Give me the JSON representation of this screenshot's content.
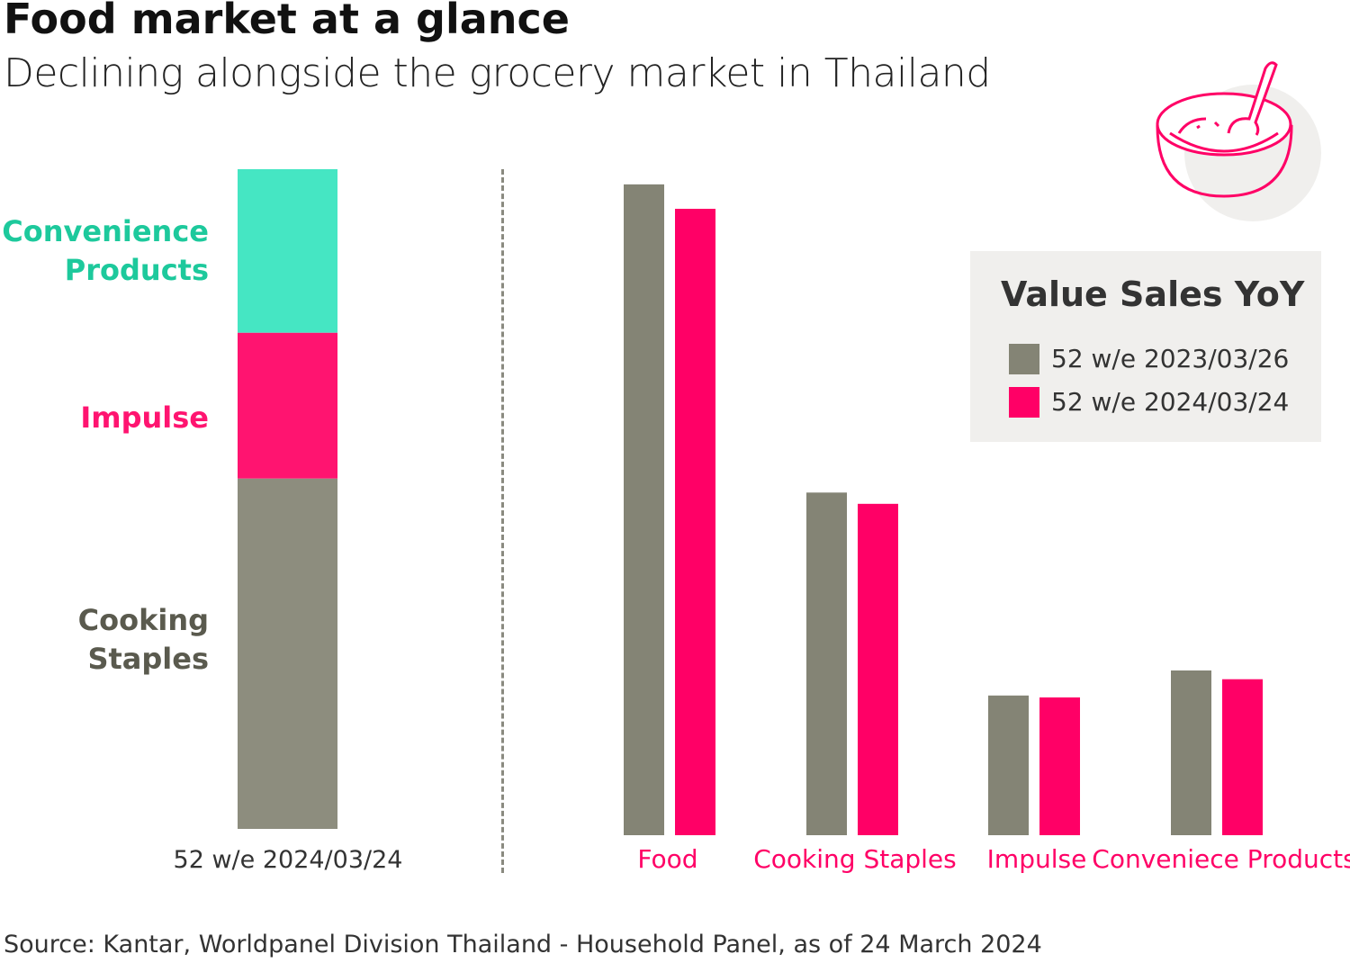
{
  "title": "Food market at a glance",
  "subtitle": "Declining alongside the grocery market in Thailand",
  "source": "Source: Kantar, Worldpanel Division Thailand - Household Panel, as of 24 March 2024",
  "icon": "bowl-with-spoon-icon",
  "colors": {
    "period_2023": "#848475",
    "period_2024": "#ff0066",
    "convenience": "#45e6c3",
    "impulse": "#ff1470",
    "cooking_staples": "#8d8d7e"
  },
  "chart_data": [
    {
      "type": "bar",
      "stacked": true,
      "xlabel": "52 w/e 2024/03/24",
      "categories": [
        "52 w/e 2024/03/24"
      ],
      "segments": [
        {
          "label_lines": [
            "Convenience",
            "Products"
          ],
          "share_pct": 24.8,
          "color": "#45e6c3",
          "label_color": "#1dc99c"
        },
        {
          "label_lines": [
            "Impulse"
          ],
          "share_pct": 22.1,
          "color": "#ff1470",
          "label_color": "#ff1470"
        },
        {
          "label_lines": [
            "Cooking",
            "Staples"
          ],
          "share_pct": 53.1,
          "color": "#8d8d7e",
          "label_color": "#5a5a4e"
        }
      ],
      "axes_shown": false,
      "grid": false
    },
    {
      "type": "bar",
      "categories": [
        "Food",
        "Cooking Staples",
        "Impulse",
        "Conveniece Products"
      ],
      "series": [
        {
          "name": "52 w/e 2023/03/26",
          "values": [
            103.9,
            54.7,
            22.3,
            26.3
          ],
          "color": "#848475"
        },
        {
          "name": "52 w/e 2024/03/24",
          "values": [
            100,
            52.9,
            22.0,
            24.9
          ],
          "color": "#ff0066"
        }
      ],
      "value_units": "relative index (Food 2024 = 100), estimated; no axis printed",
      "legend": {
        "title": "Value Sales YoY",
        "placement": "top-right"
      },
      "axes_shown": false,
      "grid": false
    }
  ]
}
